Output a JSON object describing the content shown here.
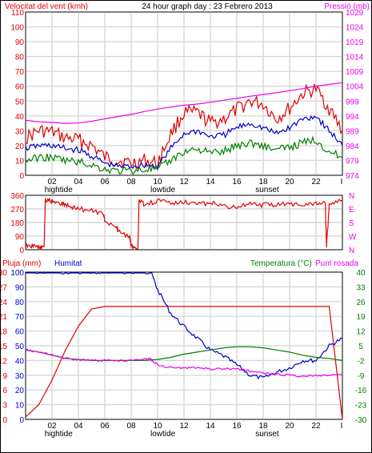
{
  "header": {
    "left_label": "Velocitat del vent (kmh)",
    "title": "24 hour graph day : 23 Febrero 2013",
    "right_label": "Pressió (mb)"
  },
  "colors": {
    "wind_max": "#e00000",
    "wind_avg": "#0000cc",
    "wind_low": "#008000",
    "pressure": "#ee00ee",
    "direction": "#e00000",
    "rain": "#e00000",
    "humidity": "#0000cc",
    "temperature": "#008000",
    "dewpoint": "#ee00ee",
    "left_axis_text": "#e00000",
    "right_axis_text": "#ee00ee",
    "humidity_axis_text": "#0000cc",
    "temp_axis_text": "#008000"
  },
  "x_axis": {
    "hour_labels": [
      "02",
      "04",
      "06",
      "08",
      "10",
      "12",
      "14",
      "16",
      "18",
      "20",
      "22",
      "I"
    ],
    "top_events": [
      {
        "hour": 2.5,
        "label": "hightide"
      },
      {
        "hour": 10.4,
        "label": "lowtide"
      },
      {
        "hour": 18.3,
        "label": "sunset"
      }
    ],
    "bottom_events": [
      {
        "hour": 2.5,
        "label": "hightide"
      },
      {
        "hour": 10.4,
        "label": "lowtide"
      },
      {
        "hour": 18.3,
        "label": "sunset"
      }
    ]
  },
  "panel_wind": {
    "left_ticks": [
      "0",
      "10",
      "20",
      "30",
      "40",
      "50",
      "60",
      "70",
      "80",
      "90",
      "100",
      "110"
    ],
    "right_ticks": [
      "974",
      "979",
      "984",
      "989",
      "994",
      "999",
      "1004",
      "1009",
      "1014",
      "1019",
      "1024",
      "1029"
    ]
  },
  "panel_direction": {
    "left_ticks": [
      "0",
      "90",
      "180",
      "270",
      "360"
    ],
    "right_letters": [
      "N",
      "W",
      "S",
      "E",
      "N"
    ]
  },
  "panel_bottom": {
    "rain_label": "Pluja (mm)",
    "humidity_label": "Humitat",
    "temp_label": "Temperatura (°C)",
    "dew_label": "Punt rosada",
    "rain_ticks": [
      "0",
      "3",
      "6",
      "9",
      "12",
      "15",
      "18",
      "21",
      "24",
      "27",
      "30"
    ],
    "humidity_ticks": [
      "0",
      "10",
      "20",
      "30",
      "40",
      "50",
      "60",
      "70",
      "80",
      "90",
      "100"
    ],
    "temp_ticks": [
      "-30",
      "-23",
      "-16",
      "-9",
      "-2",
      "5",
      "12",
      "19",
      "26",
      "33",
      "40"
    ]
  },
  "chart_data": [
    {
      "type": "line",
      "title": "24 hour graph day : 23 Febrero 2013",
      "x_unit": "hour",
      "xlim": [
        0,
        24
      ],
      "y_left": {
        "label": "Velocitat del vent (kmh)",
        "ylim": [
          0,
          110
        ]
      },
      "y_right": {
        "label": "Pressió (mb)",
        "ylim": [
          974,
          1029
        ]
      },
      "series": [
        {
          "axis": "left",
          "x": [
            0,
            1,
            2,
            3,
            4,
            5,
            6,
            7,
            8,
            9,
            10,
            11,
            12,
            13,
            14,
            15,
            16,
            17,
            18,
            19,
            20,
            21,
            22,
            23,
            24
          ],
          "values": [
            25,
            30,
            29,
            25,
            24,
            20,
            12,
            10,
            8,
            10,
            8,
            28,
            42,
            42,
            35,
            38,
            44,
            50,
            48,
            38,
            45,
            55,
            58,
            45,
            30
          ]
        },
        {
          "axis": "left",
          "x": [
            0,
            1,
            2,
            3,
            4,
            5,
            6,
            7,
            8,
            9,
            10,
            11,
            12,
            13,
            14,
            15,
            16,
            17,
            18,
            19,
            20,
            21,
            22,
            23,
            24
          ],
          "values": [
            18,
            20,
            20,
            18,
            17,
            13,
            8,
            6,
            6,
            7,
            6,
            18,
            28,
            30,
            26,
            27,
            32,
            35,
            32,
            28,
            32,
            38,
            40,
            30,
            20
          ]
        },
        {
          "axis": "left",
          "x": [
            0,
            1,
            2,
            3,
            4,
            5,
            6,
            7,
            8,
            9,
            10,
            11,
            12,
            13,
            14,
            15,
            16,
            17,
            18,
            19,
            20,
            21,
            22,
            23,
            24
          ],
          "values": [
            10,
            12,
            12,
            10,
            9,
            7,
            4,
            3,
            3,
            4,
            4,
            10,
            16,
            18,
            15,
            16,
            20,
            22,
            20,
            17,
            19,
            22,
            24,
            16,
            12
          ]
        },
        {
          "axis": "right",
          "x": [
            0,
            1,
            2,
            3,
            4,
            5,
            6,
            7,
            8,
            9,
            10,
            11,
            12,
            13,
            14,
            15,
            16,
            17,
            18,
            19,
            20,
            21,
            22,
            23,
            24
          ],
          "values": [
            992.5,
            992.0,
            991.8,
            991.5,
            991.6,
            992.2,
            993.0,
            993.8,
            994.5,
            995.5,
            996.3,
            997.0,
            997.6,
            998.0,
            998.6,
            999.3,
            999.9,
            1000.6,
            1001.2,
            1001.8,
            1002.5,
            1003.2,
            1004.0,
            1004.6,
            1005.2
          ]
        }
      ]
    },
    {
      "type": "line",
      "x_unit": "hour",
      "xlim": [
        0,
        24
      ],
      "ylim": [
        0,
        360
      ],
      "series": [
        {
          "x": [
            0,
            0.5,
            1,
            1.4,
            1.5,
            2,
            2.5,
            3,
            3.5,
            4,
            5,
            5.9,
            6,
            6.9,
            7,
            7.9,
            8,
            8.5,
            8.6,
            9,
            10,
            11,
            12,
            13,
            14,
            15,
            16,
            17,
            18,
            19,
            20,
            21,
            22,
            22.7,
            22.8,
            23,
            24
          ],
          "values": [
            30,
            25,
            20,
            10,
            330,
            320,
            310,
            300,
            280,
            270,
            260,
            240,
            190,
            150,
            120,
            80,
            20,
            0,
            330,
            300,
            320,
            310,
            320,
            300,
            310,
            290,
            280,
            300,
            295,
            300,
            305,
            300,
            310,
            310,
            20,
            300,
            330
          ]
        }
      ]
    },
    {
      "type": "line",
      "x_unit": "hour",
      "xlim": [
        0,
        24
      ],
      "y_rain": {
        "label": "Pluja (mm)",
        "ylim": [
          0,
          30
        ]
      },
      "y_humidity": {
        "label": "Humitat",
        "ylim": [
          0,
          100
        ]
      },
      "y_temp": {
        "label": "Temperatura (°C)",
        "ylim": [
          -30,
          40
        ]
      },
      "series": [
        {
          "axis": "rain",
          "x": [
            0,
            1,
            2,
            2.5,
            3,
            4,
            5,
            6,
            7,
            8,
            9,
            10,
            11,
            12,
            13,
            14,
            15,
            16,
            17,
            18,
            19,
            20,
            21,
            22,
            23,
            24
          ],
          "values": [
            0.5,
            3,
            8,
            11,
            14,
            19,
            22.5,
            23,
            23,
            23,
            23,
            23,
            23,
            23,
            23,
            23,
            23,
            23,
            23,
            23,
            23,
            23,
            23,
            23,
            23,
            0
          ]
        },
        {
          "axis": "humidity",
          "x": [
            0,
            1,
            2,
            3,
            4,
            5,
            6,
            7,
            8,
            9,
            9.5,
            10,
            11,
            12,
            13,
            14,
            15,
            16,
            17,
            18,
            19,
            20,
            21,
            22,
            23,
            24
          ],
          "values": [
            100,
            100,
            100,
            100,
            100,
            100,
            100,
            100,
            100,
            100,
            100,
            88,
            72,
            63,
            55,
            47,
            43,
            37,
            30,
            28,
            32,
            35,
            40,
            40,
            50,
            55
          ]
        },
        {
          "axis": "temp",
          "x": [
            0,
            1,
            2,
            3,
            4,
            5,
            6,
            7,
            8,
            9,
            10,
            11,
            12,
            13,
            14,
            15,
            16,
            17,
            18,
            19,
            20,
            21,
            22,
            23,
            24
          ],
          "values": [
            3,
            2,
            0.5,
            -1,
            -1.5,
            -2,
            -2,
            -2,
            -2,
            -2,
            -1.5,
            -0.5,
            1,
            2,
            3,
            4,
            4.5,
            4.5,
            4,
            3,
            2,
            0.5,
            -0.5,
            -1,
            -2
          ]
        },
        {
          "axis": "temp",
          "x": [
            0,
            1,
            2,
            3,
            4,
            5,
            6,
            7,
            8,
            9,
            9.5,
            10,
            11,
            12,
            13,
            14,
            15,
            16,
            17,
            18,
            19,
            20,
            21,
            22,
            23,
            24
          ],
          "values": [
            3,
            2,
            0.5,
            -1,
            -1.5,
            -2,
            -2,
            -2,
            -2,
            -1,
            -1.5,
            -4,
            -5.5,
            -5.5,
            -5.5,
            -6,
            -6,
            -6,
            -7,
            -8,
            -8.5,
            -9,
            -9.5,
            -9,
            -9,
            -8.5
          ]
        }
      ]
    }
  ]
}
